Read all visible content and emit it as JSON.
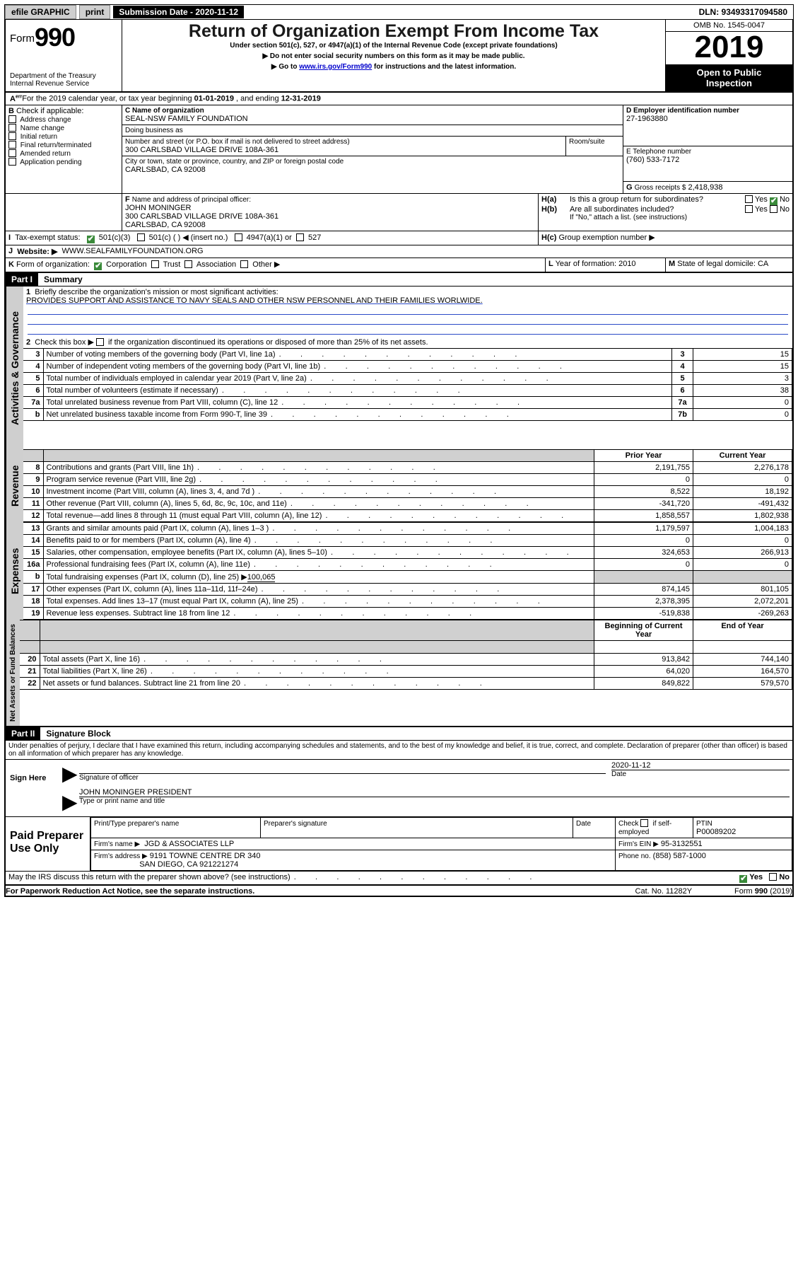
{
  "topbar": {
    "efile": "efile GRAPHIC",
    "print": "print",
    "sub_label": "Submission Date - 2020-11-12",
    "dln": "DLN: 93493317094580"
  },
  "header": {
    "form_word": "Form",
    "form_num": "990",
    "dept1": "Department of the Treasury",
    "dept2": "Internal Revenue Service",
    "title": "Return of Organization Exempt From Income Tax",
    "sub1": "Under section 501(c), 527, or 4947(a)(1) of the Internal Revenue Code (except private foundations)",
    "sub2": "▶ Do not enter social security numbers on this form as it may be made public.",
    "sub3a": "▶ Go to ",
    "sub3_link": "www.irs.gov/Form990",
    "sub3b": " for instructions and the latest information.",
    "omb": "OMB No. 1545-0047",
    "year": "2019",
    "open1": "Open to Public",
    "open2": "Inspection"
  },
  "A": {
    "text_a": "For the 2019 calendar year, or tax year beginning ",
    "beg": "01-01-2019",
    "text_b": " , and ending ",
    "end": "12-31-2019"
  },
  "B": {
    "label": "B",
    "check_label": "Check if applicable:",
    "opts": [
      "Address change",
      "Name change",
      "Initial return",
      "Final return/terminated",
      "Amended return",
      "Application pending"
    ]
  },
  "C": {
    "name_label": "C Name of organization",
    "name": "SEAL-NSW FAMILY FOUNDATION",
    "dba_label": "Doing business as",
    "addr_label": "Number and street (or P.O. box if mail is not delivered to street address)",
    "room_label": "Room/suite",
    "addr": "300 CARLSBAD VILLAGE DRIVE 108A-361",
    "city_label": "City or town, state or province, country, and ZIP or foreign postal code",
    "city": "CARLSBAD, CA  92008"
  },
  "D": {
    "label": "D Employer identification number",
    "val": "27-1963880"
  },
  "E": {
    "label": "E Telephone number",
    "val": "(760) 533-7172"
  },
  "G": {
    "label": "G",
    "text": "Gross receipts $",
    "val": "2,418,938"
  },
  "F": {
    "label": "F",
    "text": "Name and address of principal officer:",
    "name": "JOHN MONINGER",
    "addr": "300 CARLSBAD VILLAGE DRIVE 108A-361",
    "city": "CARLSBAD, CA  92008"
  },
  "H": {
    "a_label": "H(a)",
    "a_text": "Is this a group return for subordinates?",
    "b_label": "H(b)",
    "b_text": "Are all subordinates included?",
    "b_note": "If \"No,\" attach a list. (see instructions)",
    "c_label": "H(c)",
    "c_text": "Group exemption number ▶",
    "yes": "Yes",
    "no": "No"
  },
  "I": {
    "label": "I",
    "text": "Tax-exempt status:",
    "o1": "501(c)(3)",
    "o2": "501(c) (  ) ◀ (insert no.)",
    "o3": "4947(a)(1) or",
    "o4": "527"
  },
  "J": {
    "label": "J",
    "text": "Website: ▶",
    "val": "WWW.SEALFAMILYFOUNDATION.ORG"
  },
  "K": {
    "label": "K",
    "text": "Form of organization:",
    "o1": "Corporation",
    "o2": "Trust",
    "o3": "Association",
    "o4": "Other ▶"
  },
  "L": {
    "label": "L",
    "text": "Year of formation:",
    "val": "2010"
  },
  "M": {
    "label": "M",
    "text": "State of legal domicile:",
    "val": "CA"
  },
  "partI": {
    "hdr": "Part I",
    "title": "Summary",
    "l1_label": "1",
    "l1_text": "Briefly describe the organization's mission or most significant activities:",
    "l1_val": "PROVIDES SUPPORT AND ASSISTANCE TO NAVY SEALS AND OTHER NSW PERSONNEL AND THEIR FAMILIES WORLWIDE.",
    "l2_label": "2",
    "l2_text": "Check this box ▶",
    "l2_text2": "if the organization discontinued its operations or disposed of more than 25% of its net assets.",
    "rows_top": [
      {
        "no": "3",
        "txt": "Number of voting members of the governing body (Part VI, line 1a)",
        "box": "3",
        "val": "15"
      },
      {
        "no": "4",
        "txt": "Number of independent voting members of the governing body (Part VI, line 1b)",
        "box": "4",
        "val": "15"
      },
      {
        "no": "5",
        "txt": "Total number of individuals employed in calendar year 2019 (Part V, line 2a)",
        "box": "5",
        "val": "3"
      },
      {
        "no": "6",
        "txt": "Total number of volunteers (estimate if necessary)",
        "box": "6",
        "val": "38"
      },
      {
        "no": "7a",
        "txt": "Total unrelated business revenue from Part VIII, column (C), line 12",
        "box": "7a",
        "val": "0"
      },
      {
        "no": "b",
        "txt": "Net unrelated business taxable income from Form 990-T, line 39",
        "box": "7b",
        "val": "0"
      }
    ],
    "col_prior": "Prior Year",
    "col_curr": "Current Year",
    "rev_rows": [
      {
        "no": "8",
        "txt": "Contributions and grants (Part VIII, line 1h)",
        "p": "2,191,755",
        "c": "2,276,178"
      },
      {
        "no": "9",
        "txt": "Program service revenue (Part VIII, line 2g)",
        "p": "0",
        "c": "0"
      },
      {
        "no": "10",
        "txt": "Investment income (Part VIII, column (A), lines 3, 4, and 7d )",
        "p": "8,522",
        "c": "18,192"
      },
      {
        "no": "11",
        "txt": "Other revenue (Part VIII, column (A), lines 5, 6d, 8c, 9c, 10c, and 11e)",
        "p": "-341,720",
        "c": "-491,432"
      },
      {
        "no": "12",
        "txt": "Total revenue—add lines 8 through 11 (must equal Part VIII, column (A), line 12)",
        "p": "1,858,557",
        "c": "1,802,938"
      }
    ],
    "exp_rows": [
      {
        "no": "13",
        "txt": "Grants and similar amounts paid (Part IX, column (A), lines 1–3 )",
        "p": "1,179,597",
        "c": "1,004,183"
      },
      {
        "no": "14",
        "txt": "Benefits paid to or for members (Part IX, column (A), line 4)",
        "p": "0",
        "c": "0"
      },
      {
        "no": "15",
        "txt": "Salaries, other compensation, employee benefits (Part IX, column (A), lines 5–10)",
        "p": "324,653",
        "c": "266,913"
      },
      {
        "no": "16a",
        "txt": "Professional fundraising fees (Part IX, column (A), line 11e)",
        "p": "0",
        "c": "0"
      }
    ],
    "exp_16b_no": "b",
    "exp_16b_txt": "Total fundraising expenses (Part IX, column (D), line 25) ▶",
    "exp_16b_val": "100,065",
    "exp_rows2": [
      {
        "no": "17",
        "txt": "Other expenses (Part IX, column (A), lines 11a–11d, 11f–24e)",
        "p": "874,145",
        "c": "801,105"
      },
      {
        "no": "18",
        "txt": "Total expenses. Add lines 13–17 (must equal Part IX, column (A), line 25)",
        "p": "2,378,395",
        "c": "2,072,201"
      },
      {
        "no": "19",
        "txt": "Revenue less expenses. Subtract line 18 from line 12",
        "p": "-519,838",
        "c": "-269,263"
      }
    ],
    "col_begin": "Beginning of Current Year",
    "col_end": "End of Year",
    "na_rows": [
      {
        "no": "20",
        "txt": "Total assets (Part X, line 16)",
        "p": "913,842",
        "c": "744,140"
      },
      {
        "no": "21",
        "txt": "Total liabilities (Part X, line 26)",
        "p": "64,020",
        "c": "164,570"
      },
      {
        "no": "22",
        "txt": "Net assets or fund balances. Subtract line 21 from line 20",
        "p": "849,822",
        "c": "579,570"
      }
    ],
    "vtab_gov": "Activities & Governance",
    "vtab_rev": "Revenue",
    "vtab_exp": "Expenses",
    "vtab_na": "Net Assets or Fund Balances"
  },
  "partII": {
    "hdr": "Part II",
    "title": "Signature Block",
    "decl": "Under penalties of perjury, I declare that I have examined this return, including accompanying schedules and statements, and to the best of my knowledge and belief, it is true, correct, and complete. Declaration of preparer (other than officer) is based on all information of which preparer has any knowledge.",
    "sign_here": "Sign Here",
    "sig_label": "Signature of officer",
    "date_label": "Date",
    "date_val": "2020-11-12",
    "officer": "JOHN MONINGER  PRESIDENT",
    "type_label": "Type or print name and title",
    "paid": "Paid Preparer Use Only",
    "prep_name_label": "Print/Type preparer's name",
    "prep_sig_label": "Preparer's signature",
    "prep_date_label": "Date",
    "check_self": "Check",
    "check_self2": "if self-employed",
    "ptin_label": "PTIN",
    "ptin": "P00089202",
    "firm_name_label": "Firm's name    ▶",
    "firm_name": "JGD & ASSOCIATES LLP",
    "firm_ein_label": "Firm's EIN ▶",
    "firm_ein": "95-3132551",
    "firm_addr_label": "Firm's address ▶",
    "firm_addr1": "9191 TOWNE CENTRE DR 340",
    "firm_addr2": "SAN DIEGO, CA  921221274",
    "phone_label": "Phone no.",
    "phone": "(858) 587-1000",
    "discuss": "May the IRS discuss this return with the preparer shown above? (see instructions)",
    "yes": "Yes",
    "no": "No"
  },
  "footer": {
    "pra": "For Paperwork Reduction Act Notice, see the separate instructions.",
    "cat": "Cat. No. 11282Y",
    "form": "Form 990 (2019)"
  }
}
